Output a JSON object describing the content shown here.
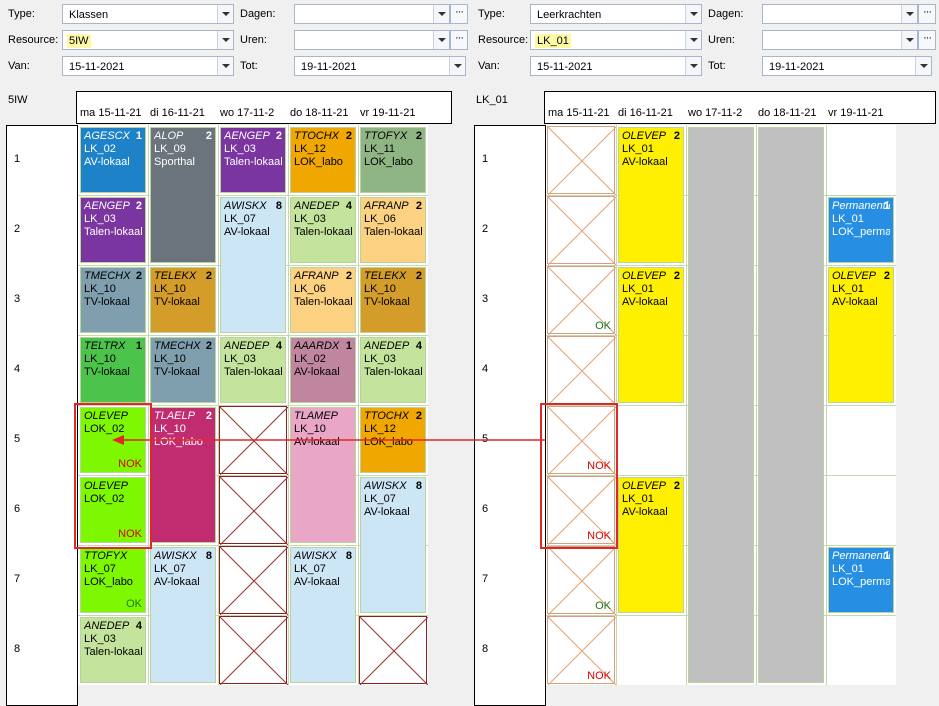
{
  "left": {
    "type_label": "Type:",
    "type_value": "Klassen",
    "resource_label": "Resource:",
    "resource_value": "5IW",
    "van_label": "Van:",
    "van_value": "15-11-2021",
    "dagen_label": "Dagen:",
    "uren_label": "Uren:",
    "tot_label": "Tot:",
    "tot_value": "19-11-2021",
    "title": "5IW",
    "days": [
      "ma 15-11-21",
      "di 16-11-21",
      "wo 17-11-2",
      "do 18-11-21",
      "vr 19-11-21"
    ],
    "hours": [
      "1",
      "2",
      "3",
      "4",
      "5",
      "6",
      "7",
      "8"
    ]
  },
  "right": {
    "type_label": "Type:",
    "type_value": "Leerkrachten",
    "resource_label": "Resource:",
    "resource_value": "LK_01",
    "van_label": "Van:",
    "van_value": "15-11-2021",
    "dagen_label": "Dagen:",
    "uren_label": "Uren:",
    "tot_label": "Tot:",
    "tot_value": "19-11-2021",
    "title": "LK_01",
    "days": [
      "ma 15-11-21",
      "di 16-11-21",
      "wo 17-11-2",
      "do 18-11-21",
      "vr 19-11-21"
    ],
    "hours": [
      "1",
      "2",
      "3",
      "4",
      "5",
      "6",
      "7",
      "8"
    ]
  },
  "dots_label": "···",
  "colors": {
    "blue": "#1e82c8",
    "gray": "#6b747c",
    "purple": "#7a35a0",
    "orange": "#f0a800",
    "sage": "#8fb584",
    "lightblue": "#cde6f5",
    "lightgreen": "#c4e39c",
    "peach": "#fcd282",
    "slate": "#7f9eae",
    "gold": "#d49c28",
    "green": "#4cc44c",
    "pink": "#c1869f",
    "lightpink": "#e9a6c6",
    "magenta": "#c12c70",
    "lime": "#7ef800",
    "yellow": "#ffef00",
    "silver": "#c0c0c0",
    "azure": "#268fe4"
  },
  "lcells": [
    {
      "c1": "AGESCX",
      "c2": "LK_02",
      "c3": "AV-lokaal",
      "n": "1",
      "day": 0,
      "h": 0,
      "span": 1,
      "bg": "#1e82c8",
      "white": true
    },
    {
      "c1": "ALOP",
      "c2": "LK_09",
      "c3": "Sporthal",
      "n": "2",
      "day": 1,
      "h": 0,
      "span": 2,
      "bg": "#6b747c",
      "white": true
    },
    {
      "c1": "AENGEP",
      "c2": "LK_03",
      "c3": "Talen-lokaal",
      "n": "2",
      "day": 2,
      "h": 0,
      "span": 1,
      "bg": "#7a35a0",
      "white": true
    },
    {
      "c1": "TTOCHX",
      "c2": "LK_12",
      "c3": "LOK_labo",
      "n": "2",
      "day": 3,
      "h": 0,
      "span": 1,
      "bg": "#f0a800",
      "white": false
    },
    {
      "c1": "TTOFYX",
      "c2": "LK_11",
      "c3": "LOK_labo",
      "n": "2",
      "day": 4,
      "h": 0,
      "span": 1,
      "bg": "#8fb584",
      "white": false
    },
    {
      "c1": "AENGEP",
      "c2": "LK_03",
      "c3": "Talen-lokaal",
      "n": "2",
      "day": 0,
      "h": 1,
      "span": 1,
      "bg": "#7a35a0",
      "white": true
    },
    {
      "c1": "AWISKX",
      "c2": "LK_07",
      "c3": "AV-lokaal",
      "n": "8",
      "day": 2,
      "h": 1,
      "span": 2,
      "bg": "#cde6f5",
      "white": false
    },
    {
      "c1": "ANEDEP",
      "c2": "LK_03",
      "c3": "Talen-lokaal",
      "n": "4",
      "day": 3,
      "h": 1,
      "span": 1,
      "bg": "#c4e39c",
      "white": false
    },
    {
      "c1": "AFRANP",
      "c2": "LK_06",
      "c3": "Talen-lokaal",
      "n": "2",
      "day": 4,
      "h": 1,
      "span": 1,
      "bg": "#fcd282",
      "white": false
    },
    {
      "c1": "TMECHX",
      "c2": "LK_10",
      "c3": "TV-lokaal",
      "n": "2",
      "day": 0,
      "h": 2,
      "span": 1,
      "bg": "#7f9eae",
      "white": false
    },
    {
      "c1": "TELEKX",
      "c2": "LK_10",
      "c3": "TV-lokaal",
      "n": "2",
      "day": 1,
      "h": 2,
      "span": 1,
      "bg": "#d49c28",
      "white": false
    },
    {
      "c1": "AFRANP",
      "c2": "LK_06",
      "c3": "Talen-lokaal",
      "n": "2",
      "day": 3,
      "h": 2,
      "span": 1,
      "bg": "#fcd282",
      "white": false
    },
    {
      "c1": "TELEKX",
      "c2": "LK_10",
      "c3": "TV-lokaal",
      "n": "2",
      "day": 4,
      "h": 2,
      "span": 1,
      "bg": "#d49c28",
      "white": false
    },
    {
      "c1": "TELTRX",
      "c2": "LK_10",
      "c3": "TV-lokaal",
      "n": "1",
      "day": 0,
      "h": 3,
      "span": 1,
      "bg": "#4cc44c",
      "white": false
    },
    {
      "c1": "TMECHX",
      "c2": "LK_10",
      "c3": "TV-lokaal",
      "n": "2",
      "day": 1,
      "h": 3,
      "span": 1,
      "bg": "#7f9eae",
      "white": false
    },
    {
      "c1": "ANEDEP",
      "c2": "LK_03",
      "c3": "Talen-lokaal",
      "n": "4",
      "day": 2,
      "h": 3,
      "span": 1,
      "bg": "#c4e39c",
      "white": false
    },
    {
      "c1": "AAARDX",
      "c2": "LK_02",
      "c3": "AV-lokaal",
      "n": "1",
      "day": 3,
      "h": 3,
      "span": 1,
      "bg": "#c1869f",
      "white": false
    },
    {
      "c1": "ANEDEP",
      "c2": "LK_03",
      "c3": "Talen-lokaal",
      "n": "4",
      "day": 4,
      "h": 3,
      "span": 1,
      "bg": "#c4e39c",
      "white": false
    },
    {
      "c1": "OLEVEP",
      "c2": "LOK_02",
      "c3": "",
      "n": "",
      "st": "NOK",
      "day": 0,
      "h": 4,
      "span": 1,
      "bg": "#7ef800",
      "white": false
    },
    {
      "c1": "TLAELP",
      "c2": "LK_10",
      "c3": "LOK_labo",
      "n": "2",
      "day": 1,
      "h": 4,
      "span": 2,
      "bg": "#c12c70",
      "white": true
    },
    {
      "c1": "TLAMEP",
      "c2": "LK_10",
      "c3": "AV-lokaal",
      "n": "",
      "day": 3,
      "h": 4,
      "span": 2,
      "bg": "#e9a6c6",
      "white": false
    },
    {
      "c1": "TTOCHX",
      "c2": "LK_12",
      "c3": "LOK_labo",
      "n": "2",
      "day": 4,
      "h": 4,
      "span": 1,
      "bg": "#f0a800",
      "white": false
    },
    {
      "c1": "OLEVEP",
      "c2": "LOK_02",
      "c3": "",
      "n": "",
      "st": "NOK",
      "day": 0,
      "h": 5,
      "span": 1,
      "bg": "#7ef800",
      "white": false
    },
    {
      "c1": "AWISKX",
      "c2": "LK_07",
      "c3": "AV-lokaal",
      "n": "8",
      "day": 4,
      "h": 5,
      "span": 2,
      "bg": "#cde6f5",
      "white": false
    },
    {
      "c1": "TTOFYX",
      "c2": "LK_07",
      "c3": "LOK_labo",
      "n": "",
      "st": "OK",
      "day": 0,
      "h": 6,
      "span": 1,
      "bg": "#7ef800",
      "white": false
    },
    {
      "c1": "AWISKX",
      "c2": "LK_07",
      "c3": "AV-lokaal",
      "n": "8",
      "day": 1,
      "h": 6,
      "span": 2,
      "bg": "#cde6f5",
      "white": false
    },
    {
      "c1": "AWISKX",
      "c2": "LK_07",
      "c3": "AV-lokaal",
      "n": "8",
      "day": 3,
      "h": 6,
      "span": 2,
      "bg": "#cde6f5",
      "white": false
    },
    {
      "c1": "ANEDEP",
      "c2": "LK_03",
      "c3": "Talen-lokaal",
      "n": "4",
      "day": 0,
      "h": 7,
      "span": 1,
      "bg": "#c4e39c",
      "white": false
    }
  ],
  "lx": [
    {
      "day": 2,
      "h": 4
    },
    {
      "day": 2,
      "h": 5
    },
    {
      "day": 2,
      "h": 6
    },
    {
      "day": 2,
      "h": 7
    },
    {
      "day": 4,
      "h": 7
    }
  ],
  "rcells": [
    {
      "c1": "OLEVEP",
      "c2": "LK_01",
      "c3": "AV-lokaal",
      "n": "2",
      "day": 1,
      "h": 0,
      "span": 2,
      "bg": "#ffef00",
      "white": false
    },
    {
      "c1": "",
      "c2": "",
      "c3": "",
      "n": "",
      "day": 2,
      "h": 0,
      "span": 8,
      "bg": "#c0c0c0",
      "white": false
    },
    {
      "c1": "",
      "c2": "",
      "c3": "",
      "n": "",
      "day": 3,
      "h": 0,
      "span": 8,
      "bg": "#c0c0c0",
      "white": false
    },
    {
      "c1": "Permanentie",
      "c2": "LK_01",
      "c3": "LOK_permanentie",
      "n": "1",
      "day": 4,
      "h": 1,
      "span": 1,
      "bg": "#268fe4",
      "white": true
    },
    {
      "c1": "OLEVEP",
      "c2": "LK_01",
      "c3": "AV-lokaal",
      "n": "2",
      "day": 1,
      "h": 2,
      "span": 2,
      "bg": "#ffef00",
      "white": false
    },
    {
      "c1": "OLEVEP",
      "c2": "LK_01",
      "c3": "AV-lokaal",
      "n": "2",
      "day": 4,
      "h": 2,
      "span": 2,
      "bg": "#ffef00",
      "white": false
    },
    {
      "c1": "OLEVEP",
      "c2": "LK_01",
      "c3": "AV-lokaal",
      "n": "2",
      "day": 1,
      "h": 5,
      "span": 2,
      "bg": "#ffef00",
      "white": false
    },
    {
      "c1": "Permanentie",
      "c2": "LK_01",
      "c3": "LOK_permanentie",
      "n": "1",
      "day": 4,
      "h": 6,
      "span": 1,
      "bg": "#268fe4",
      "white": true
    }
  ],
  "rx": [
    {
      "day": 0,
      "h": 0,
      "st": ""
    },
    {
      "day": 0,
      "h": 1,
      "st": ""
    },
    {
      "day": 0,
      "h": 2,
      "st": "OK"
    },
    {
      "day": 0,
      "h": 3,
      "st": ""
    },
    {
      "day": 0,
      "h": 4,
      "st": "NOK"
    },
    {
      "day": 0,
      "h": 5,
      "st": "NOK"
    },
    {
      "day": 0,
      "h": 6,
      "st": "OK"
    },
    {
      "day": 0,
      "h": 7,
      "st": "NOK"
    }
  ]
}
